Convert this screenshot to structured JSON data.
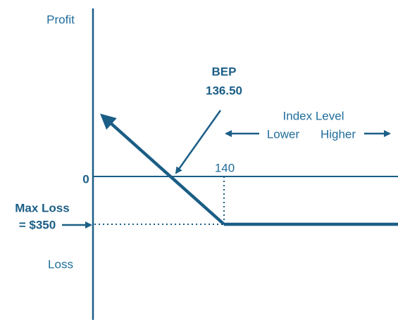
{
  "axis": {
    "top_label": "Profit",
    "bottom_label": "Loss",
    "zero_label": "0"
  },
  "max_loss": {
    "title": "Max Loss",
    "amount": "= $350"
  },
  "break_even": {
    "title": "BEP",
    "value": "136.50"
  },
  "strike": {
    "label": "140"
  },
  "index_level": {
    "title": "Index Level",
    "lower": "Lower",
    "higher": "Higher"
  }
}
